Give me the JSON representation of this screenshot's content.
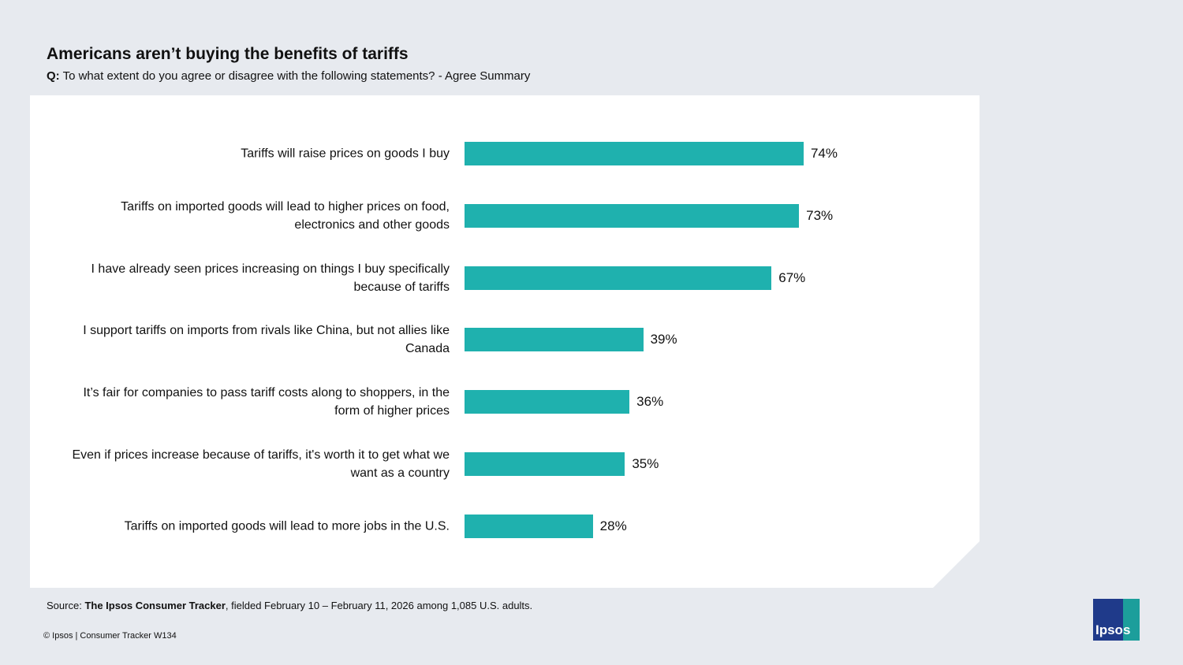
{
  "header": {
    "title": "Americans aren’t buying the benefits of tariffs",
    "question_label": "Q:",
    "subtitle": "To what extent do you agree or disagree with the following statements? - Agree Summary"
  },
  "chart_data": {
    "type": "barh",
    "categories": [
      "Tariffs will raise prices on goods I buy",
      "Tariffs on imported goods will lead to higher prices on food, electronics and other goods",
      "I have already seen prices increasing on things I buy specifically because of tariffs",
      "I support tariffs on imports from rivals like China, but not allies like Canada",
      "It’s fair for companies to pass tariff costs along to shoppers, in the form of higher prices",
      "Even if prices increase because of tariffs, it's worth it to get what we want as a country",
      "Tariffs on imported goods will lead to more jobs in the U.S."
    ],
    "values": [
      74,
      73,
      67,
      39,
      36,
      35,
      28
    ],
    "value_labels": [
      "74%",
      "73%",
      "67%",
      "39%",
      "36%",
      "35%",
      "28%"
    ],
    "color": "#1fb1ae",
    "xlim": [
      0,
      100
    ]
  },
  "footer": {
    "source_label": "Source:",
    "source_name": "The Ipsos Consumer Tracker",
    "source_rest": ", fielded February 10 – February 11, 2026 among 1,085 U.S. adults.",
    "copyright": "© Ipsos | Consumer Tracker W134",
    "logo": "Ipsos"
  }
}
